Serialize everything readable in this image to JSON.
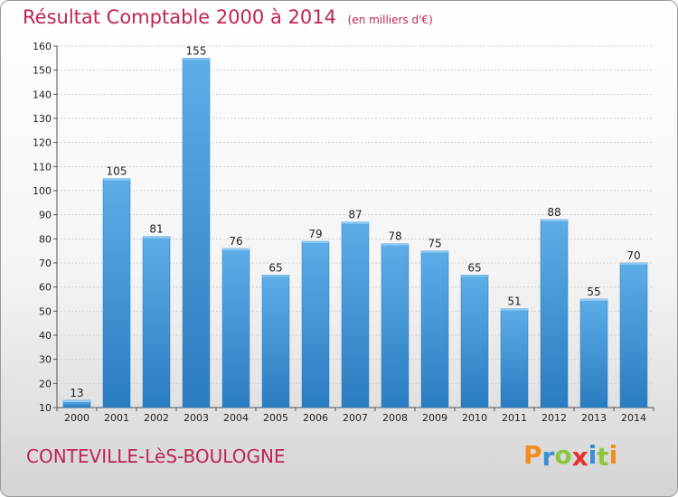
{
  "header": {
    "title": "Résultat Comptable 2000 à 2014",
    "unit": "(en milliers d'€)"
  },
  "footer": {
    "location": "CONTEVILLE-LèS-BOULOGNE",
    "brand_letters": [
      {
        "char": "P",
        "color": "#f28c1b"
      },
      {
        "char": "r",
        "color": "#3a8ed6"
      },
      {
        "char": "o",
        "color": "#8dc63f"
      },
      {
        "char": "x",
        "color": "#e8312a"
      },
      {
        "char": "i",
        "color": "#3a8ed6"
      },
      {
        "char": "t",
        "color": "#8dc63f"
      },
      {
        "char": "i",
        "color": "#f28c1b"
      }
    ]
  },
  "colors": {
    "bar_light": "#5dade8",
    "bar_dark": "#2a7cc0",
    "accent": "#c0244f",
    "grid": "#cfcfcf"
  },
  "chart_data": {
    "type": "bar",
    "title": "Résultat Comptable 2000 à 2014",
    "ylabel": "",
    "xlabel": "",
    "categories": [
      "2000",
      "2001",
      "2002",
      "2003",
      "2004",
      "2005",
      "2006",
      "2007",
      "2008",
      "2009",
      "2010",
      "2011",
      "2012",
      "2013",
      "2014"
    ],
    "values": [
      13,
      105,
      81,
      155,
      76,
      65,
      79,
      87,
      78,
      75,
      65,
      51,
      88,
      55,
      70
    ],
    "ylim": [
      10,
      160
    ],
    "yticks": [
      10,
      20,
      30,
      40,
      50,
      60,
      70,
      80,
      90,
      100,
      110,
      120,
      130,
      140,
      150,
      160
    ],
    "grid": true,
    "data_labels": true
  }
}
